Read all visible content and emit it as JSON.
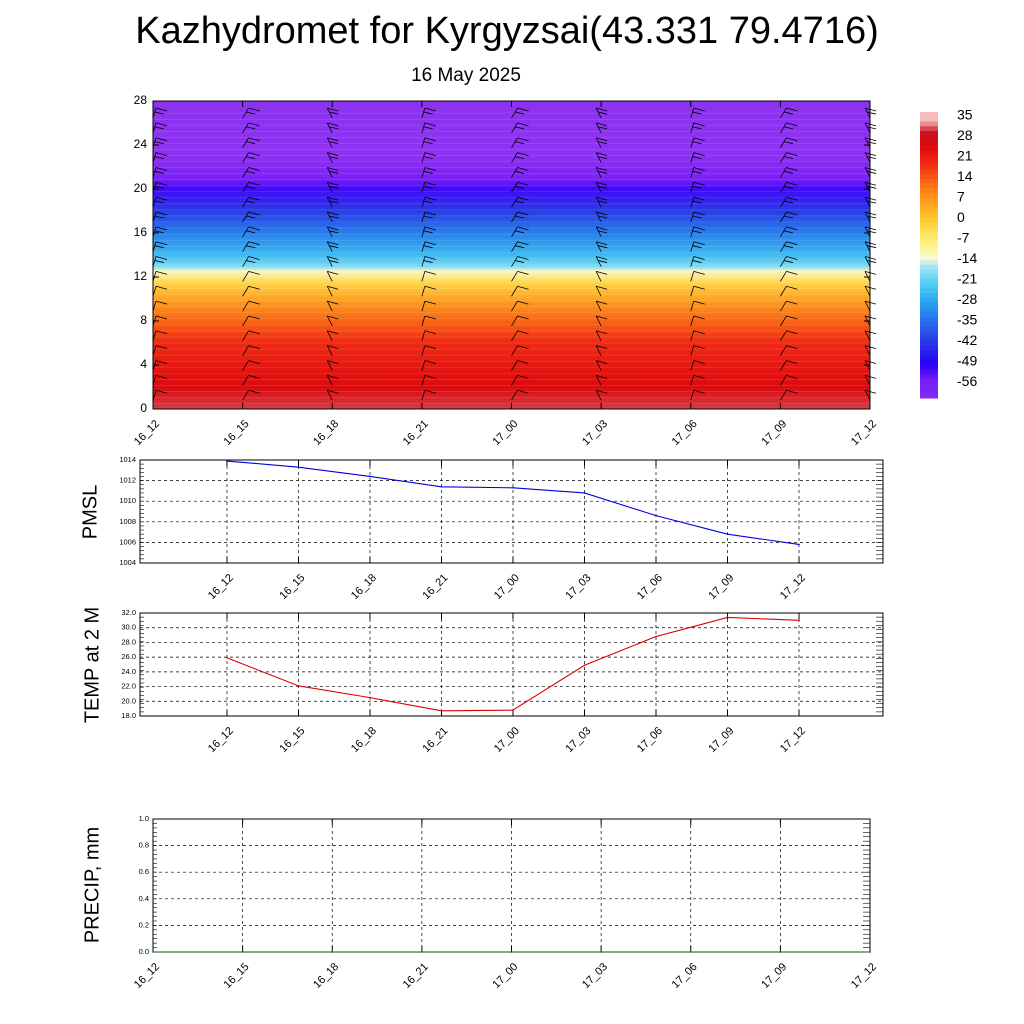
{
  "header": {
    "title": "Kazhydromet for Kyrgyzsai(43.331 79.4716)",
    "subtitle": "16 May 2025"
  },
  "colors": {
    "pressure_line": "#0000dd",
    "temperature_line": "#dd0000",
    "precip_line": "#006400",
    "grid": "#000000",
    "wind_barb": "#000000"
  },
  "chart_data": [
    {
      "id": "cross-section",
      "type": "heatmap",
      "description_of_fill": "air temperature (°C) by forecast time and height",
      "x_tick_labels": [
        "16_12",
        "16_15",
        "16_18",
        "16_21",
        "17_00",
        "17_03",
        "17_06",
        "17_09",
        "17_12"
      ],
      "y_ticks": [
        0,
        4,
        8,
        12,
        16,
        20,
        24,
        28
      ],
      "ylim": [
        0,
        28
      ],
      "colorbar": {
        "labels": [
          "35",
          "28",
          "21",
          "14",
          "7",
          "0",
          "-7",
          "-14",
          "-21",
          "-28",
          "-35",
          "-42",
          "-49",
          "-56"
        ],
        "values": [
          35,
          28,
          21,
          14,
          7,
          0,
          -7,
          -14,
          -21,
          -28,
          -35,
          -42,
          -49,
          -56
        ]
      },
      "vertical_profile": {
        "heights": [
          0,
          2,
          4,
          6,
          8,
          10,
          11.5,
          12.5,
          13,
          14,
          16,
          18,
          20,
          21,
          22,
          23,
          28
        ],
        "temperatures": [
          32,
          26,
          23,
          20,
          14,
          6,
          -2,
          -12,
          -19,
          -25,
          -33,
          -42,
          -52,
          -58,
          -62,
          -66,
          -66
        ]
      },
      "wind_barbs": "shown at every 3-hour column across all heights",
      "grid": false
    },
    {
      "id": "pmsl",
      "type": "line",
      "ylabel": "PMSL",
      "x_tick_labels": [
        "16_12",
        "16_15",
        "16_18",
        "16_21",
        "17_00",
        "17_03",
        "17_06",
        "17_09",
        "17_12"
      ],
      "y_ticks": [
        1004,
        1006,
        1008,
        1010,
        1012,
        1014
      ],
      "ylim": [
        1004,
        1014
      ],
      "series": [
        {
          "values": [
            1013.9,
            1013.3,
            1012.4,
            1011.4,
            1011.3,
            1010.8,
            1008.6,
            1006.8,
            1005.8
          ]
        }
      ],
      "grid": true
    },
    {
      "id": "temp2m",
      "type": "line",
      "ylabel": "TEMP at 2 M",
      "x_tick_labels": [
        "16_12",
        "16_15",
        "16_18",
        "16_21",
        "17_00",
        "17_03",
        "17_06",
        "17_09",
        "17_12"
      ],
      "y_ticks": [
        18.0,
        20.0,
        22.0,
        24.0,
        26.0,
        28.0,
        30.0,
        32.0
      ],
      "y_tick_labels": [
        "18.0",
        "20.0",
        "22.0",
        "24.0",
        "26.0",
        "28.0",
        "30.0",
        "32.0"
      ],
      "ylim": [
        18,
        32
      ],
      "series": [
        {
          "values": [
            25.9,
            22.1,
            20.5,
            18.7,
            18.8,
            24.9,
            28.8,
            31.4,
            31.0
          ]
        }
      ],
      "grid": true
    },
    {
      "id": "precip",
      "type": "line",
      "ylabel": "PRECIP, mm",
      "x_tick_labels": [
        "16_12",
        "16_15",
        "16_18",
        "16_21",
        "17_00",
        "17_03",
        "17_06",
        "17_09",
        "17_12"
      ],
      "y_ticks": [
        0.0,
        0.2,
        0.4,
        0.6,
        0.8,
        1.0
      ],
      "y_tick_labels": [
        "0.0",
        "0.2",
        "0.4",
        "0.6",
        "0.8",
        "1.0"
      ],
      "ylim": [
        0,
        1
      ],
      "series": [
        {
          "values": [
            0,
            0,
            0,
            0,
            0,
            0,
            0,
            0,
            0
          ]
        }
      ],
      "grid": true
    }
  ]
}
